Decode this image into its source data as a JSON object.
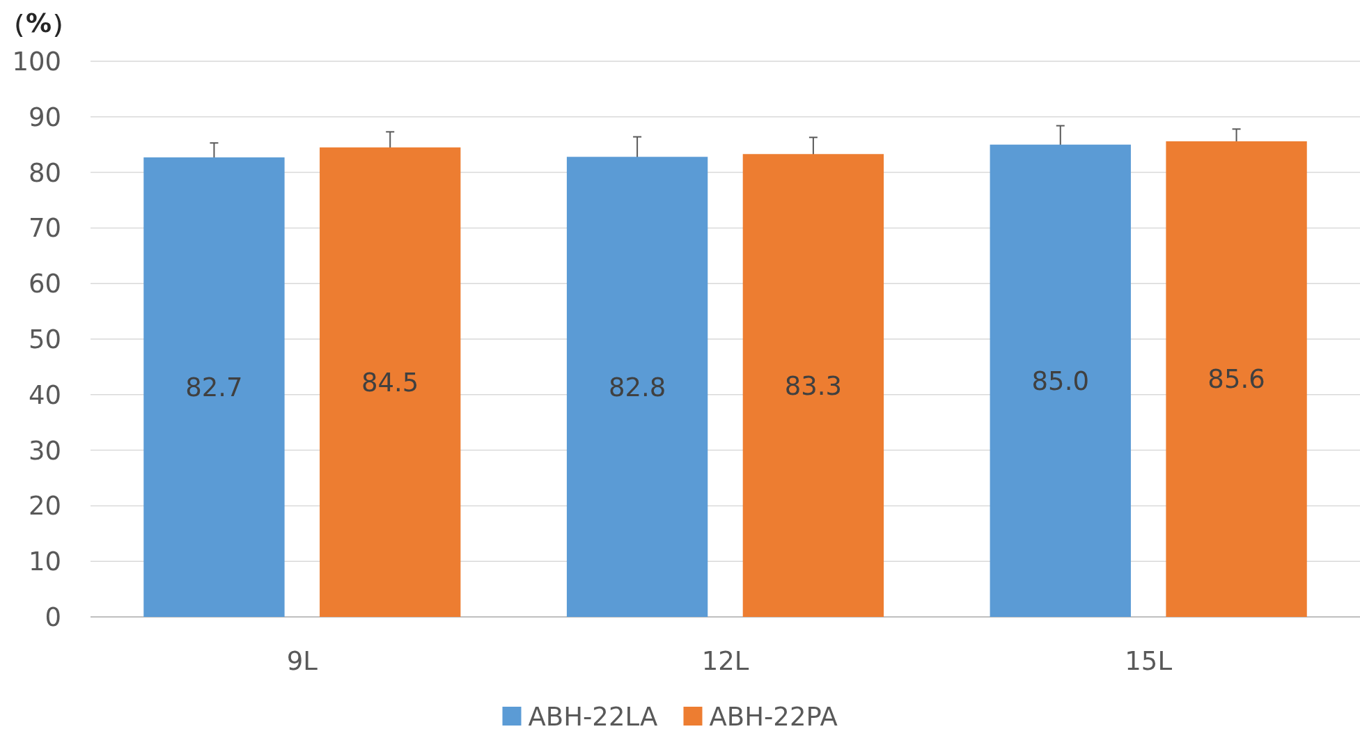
{
  "chart_data": {
    "type": "bar",
    "ylabel": "（%）",
    "categories": [
      "9L",
      "12L",
      "15L"
    ],
    "series": [
      {
        "name": "ABH-22LA",
        "color": "#5b9bd5",
        "values": [
          82.7,
          82.8,
          85.0
        ],
        "errors": [
          2.6,
          3.6,
          3.4
        ],
        "value_labels": [
          "82.7",
          "82.8",
          "85.0"
        ]
      },
      {
        "name": "ABH-22PA",
        "color": "#ed7d31",
        "values": [
          84.5,
          83.3,
          85.6
        ],
        "errors": [
          2.8,
          3.0,
          2.2
        ],
        "value_labels": [
          "84.5",
          "83.3",
          "85.6"
        ]
      }
    ],
    "ylim": [
      0,
      100
    ],
    "yticks": [
      0,
      10,
      20,
      30,
      40,
      50,
      60,
      70,
      80,
      90,
      100
    ],
    "grid": "y",
    "legend": "bottom"
  }
}
